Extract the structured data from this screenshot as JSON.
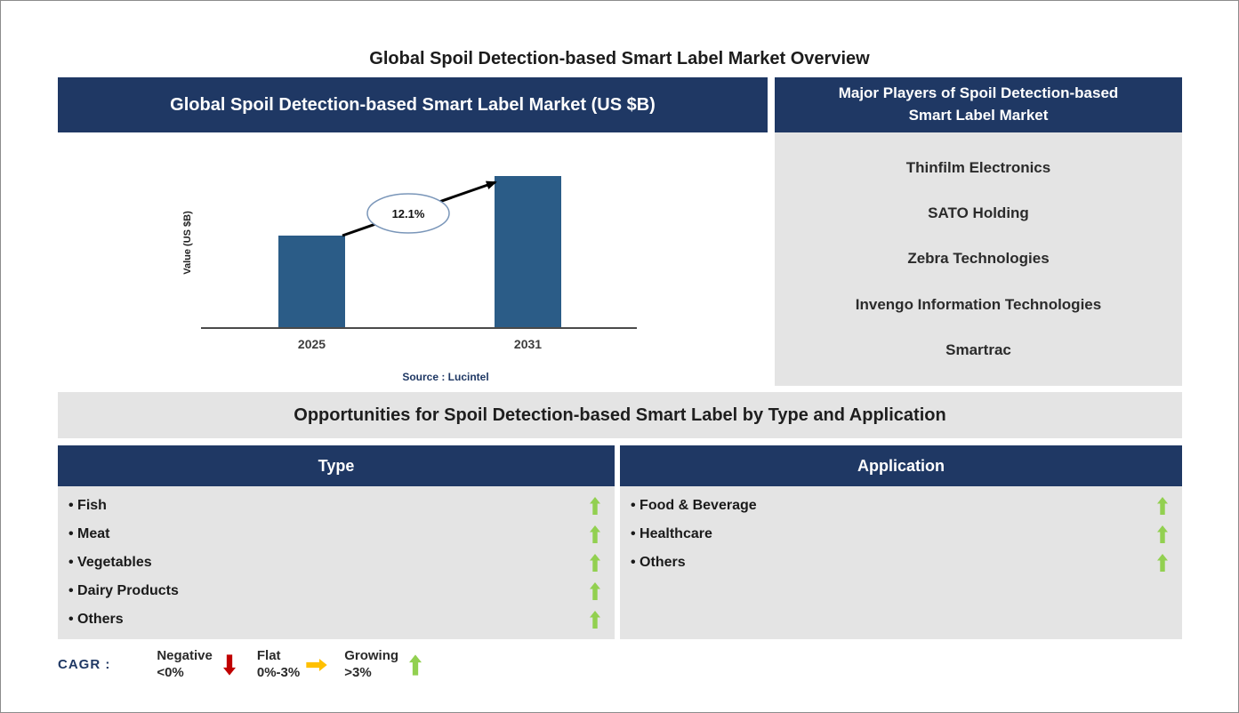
{
  "page": {
    "title": "Global Spoil Detection-based Smart Label Market Overview"
  },
  "chart_data": {
    "type": "bar",
    "title": "Global Spoil Detection-based Smart Label Market (US $B)",
    "ylabel": "Value (US $B)",
    "categories": [
      "2025",
      "2031"
    ],
    "values": [
      1.0,
      1.65
    ],
    "value_note": "relative heights; y-axis has no numeric ticks",
    "cagr_label": "12.1%",
    "source": "Source : Lucintel",
    "bar_color": "#2B5C87",
    "legend_position": "none",
    "grid": false
  },
  "players": {
    "header": "Major Players of Spoil Detection-based Smart Label Market",
    "items": [
      "Thinfilm Electronics",
      "SATO Holding",
      "Zebra Technologies",
      "Invengo Information Technologies",
      "Smartrac"
    ]
  },
  "opportunities": {
    "title": "Opportunities for Spoil Detection-based Smart Label by Type and Application"
  },
  "type_panel": {
    "header": "Type",
    "items": [
      "Fish",
      "Meat",
      "Vegetables",
      "Dairy Products",
      "Others"
    ],
    "trend": "growing"
  },
  "application_panel": {
    "header": "Application",
    "items": [
      "Food & Beverage",
      "Healthcare",
      "Others"
    ],
    "trend": "growing"
  },
  "cagr_legend": {
    "label": "CAGR :",
    "entries": [
      {
        "name": "Negative",
        "range": "<0%",
        "direction": "down",
        "color": "#C00000"
      },
      {
        "name": "Flat",
        "range": "0%-3%",
        "direction": "right",
        "color": "#FFC000"
      },
      {
        "name": "Growing",
        "range": ">3%",
        "direction": "up",
        "color": "#92D050"
      }
    ]
  },
  "colors": {
    "header_navy": "#1F3864",
    "panel_gray": "#E4E4E4",
    "bar_blue": "#2B5C87",
    "growing_green": "#92D050",
    "negative_red": "#C00000",
    "flat_yellow": "#FFC000"
  }
}
